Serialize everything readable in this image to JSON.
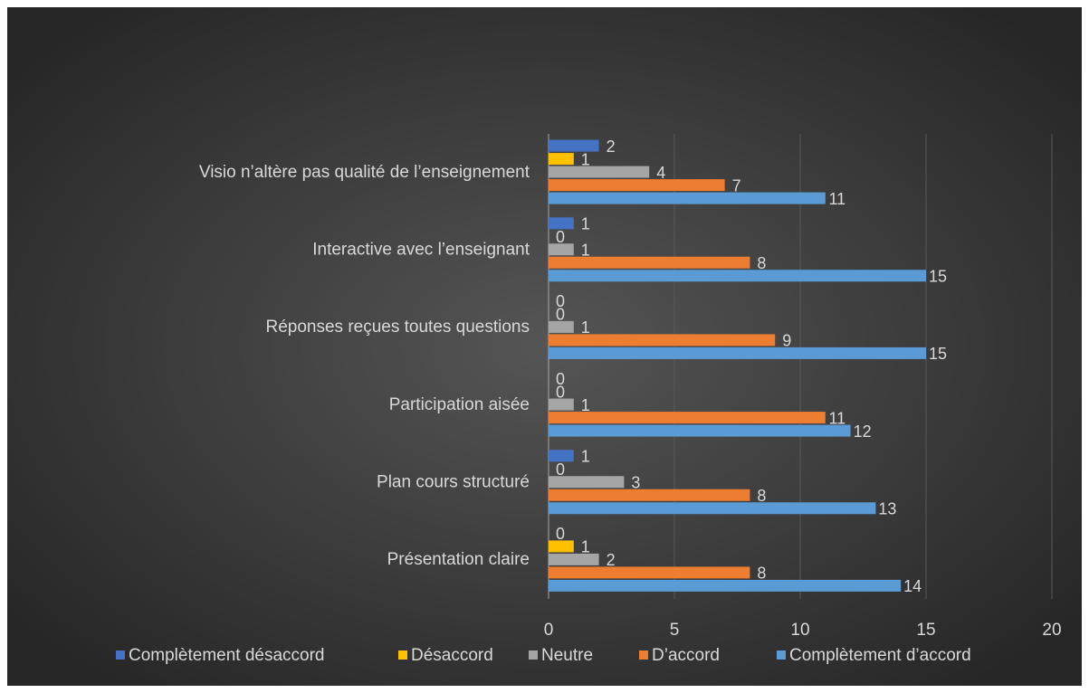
{
  "chart_data": {
    "type": "hbar",
    "categories": [
      "Présentation claire",
      "Plan cours structuré",
      "Participation aisée",
      "Réponses reçues toutes questions",
      "Interactive avec l’enseignant",
      "Visio n’altère pas qualité de l’enseignement"
    ],
    "series": [
      {
        "name": "Complètement désaccord",
        "color": "#4472c4",
        "values": [
          0,
          1,
          0,
          0,
          1,
          2
        ]
      },
      {
        "name": "Désaccord",
        "color": "#ffc000",
        "values": [
          1,
          0,
          0,
          0,
          0,
          1
        ]
      },
      {
        "name": "Neutre",
        "color": "#a5a5a5",
        "values": [
          2,
          3,
          1,
          1,
          1,
          4
        ]
      },
      {
        "name": "D’accord",
        "color": "#ed7d31",
        "values": [
          8,
          8,
          11,
          9,
          8,
          7
        ]
      },
      {
        "name": "Complètement d’accord",
        "color": "#5b9bd5",
        "values": [
          14,
          13,
          12,
          15,
          15,
          11
        ]
      }
    ],
    "xlim": [
      0,
      20
    ],
    "xticks": [
      0,
      5,
      10,
      15,
      20
    ],
    "grid": true,
    "legend": "bottom"
  }
}
